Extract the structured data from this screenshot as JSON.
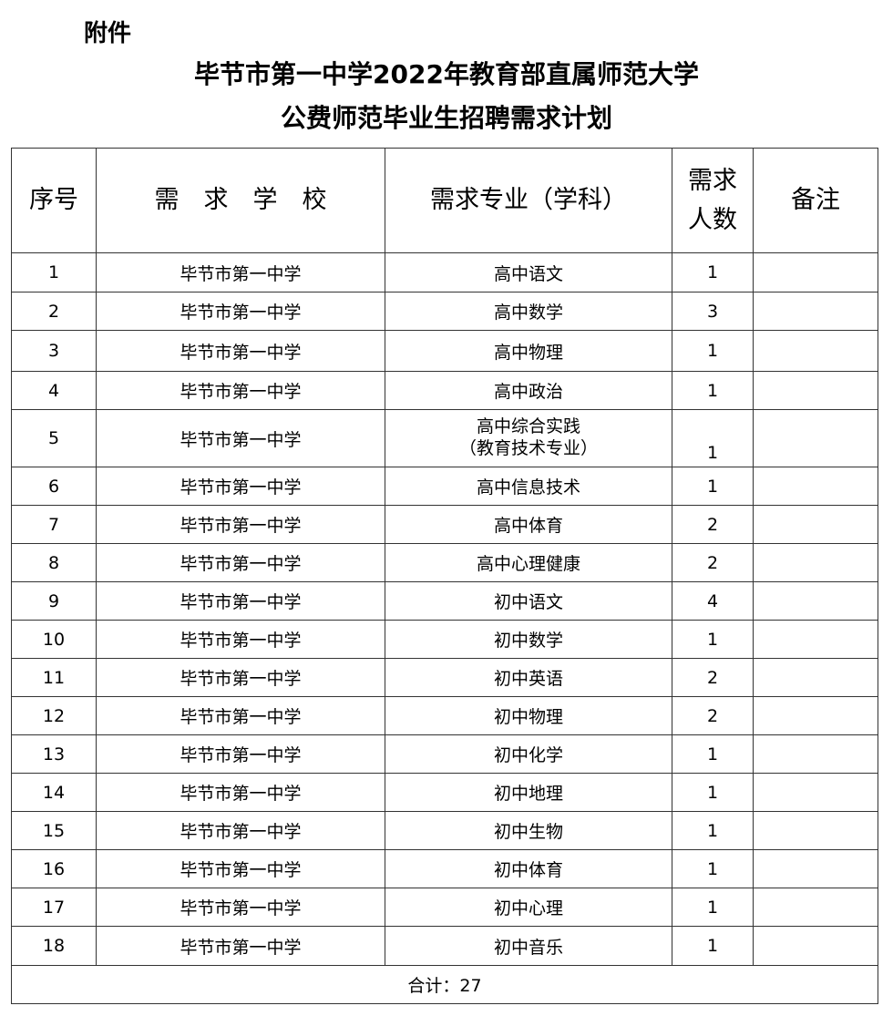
{
  "attachment_label": "附件",
  "title_line1": "毕节市第一中学2022年教育部直属师范大学",
  "title_line2": "公费师范毕业生招聘需求计划",
  "table": {
    "headers": [
      "序号",
      "需　求　学　校",
      "需求专业（学科）",
      "需求\n人数",
      "备注"
    ],
    "headers_count_line1": "需求",
    "headers_count_line2": "人数",
    "rows": [
      {
        "no": "1",
        "school": "毕节市第一中学",
        "subject": "高中语文",
        "count": "1",
        "note": ""
      },
      {
        "no": "2",
        "school": "毕节市第一中学",
        "subject": "高中数学",
        "count": "3",
        "note": ""
      },
      {
        "no": "3",
        "school": "毕节市第一中学",
        "subject": "高中物理",
        "count": "1",
        "note": ""
      },
      {
        "no": "4",
        "school": "毕节市第一中学",
        "subject": "高中政治",
        "count": "1",
        "note": ""
      },
      {
        "no": "5",
        "school": "毕节市第一中学",
        "subject": "高中综合实践",
        "subject2": "（教育技术专业）",
        "count": "1",
        "note": ""
      },
      {
        "no": "6",
        "school": "毕节市第一中学",
        "subject": "高中信息技术",
        "count": "1",
        "note": ""
      },
      {
        "no": "7",
        "school": "毕节市第一中学",
        "subject": "高中体育",
        "count": "2",
        "note": ""
      },
      {
        "no": "8",
        "school": "毕节市第一中学",
        "subject": "高中心理健康",
        "count": "2",
        "note": ""
      },
      {
        "no": "9",
        "school": "毕节市第一中学",
        "subject": "初中语文",
        "count": "4",
        "note": ""
      },
      {
        "no": "10",
        "school": "毕节市第一中学",
        "subject": "初中数学",
        "count": "1",
        "note": ""
      },
      {
        "no": "11",
        "school": "毕节市第一中学",
        "subject": "初中英语",
        "count": "2",
        "note": ""
      },
      {
        "no": "12",
        "school": "毕节市第一中学",
        "subject": "初中物理",
        "count": "2",
        "note": ""
      },
      {
        "no": "13",
        "school": "毕节市第一中学",
        "subject": "初中化学",
        "count": "1",
        "note": ""
      },
      {
        "no": "14",
        "school": "毕节市第一中学",
        "subject": "初中地理",
        "count": "1",
        "note": ""
      },
      {
        "no": "15",
        "school": "毕节市第一中学",
        "subject": "初中生物",
        "count": "1",
        "note": ""
      },
      {
        "no": "16",
        "school": "毕节市第一中学",
        "subject": "初中体育",
        "count": "1",
        "note": ""
      },
      {
        "no": "17",
        "school": "毕节市第一中学",
        "subject": "初中心理",
        "count": "1",
        "note": ""
      },
      {
        "no": "18",
        "school": "毕节市第一中学",
        "subject": "初中音乐",
        "count": "1",
        "note": ""
      }
    ],
    "total": "合计：27"
  }
}
